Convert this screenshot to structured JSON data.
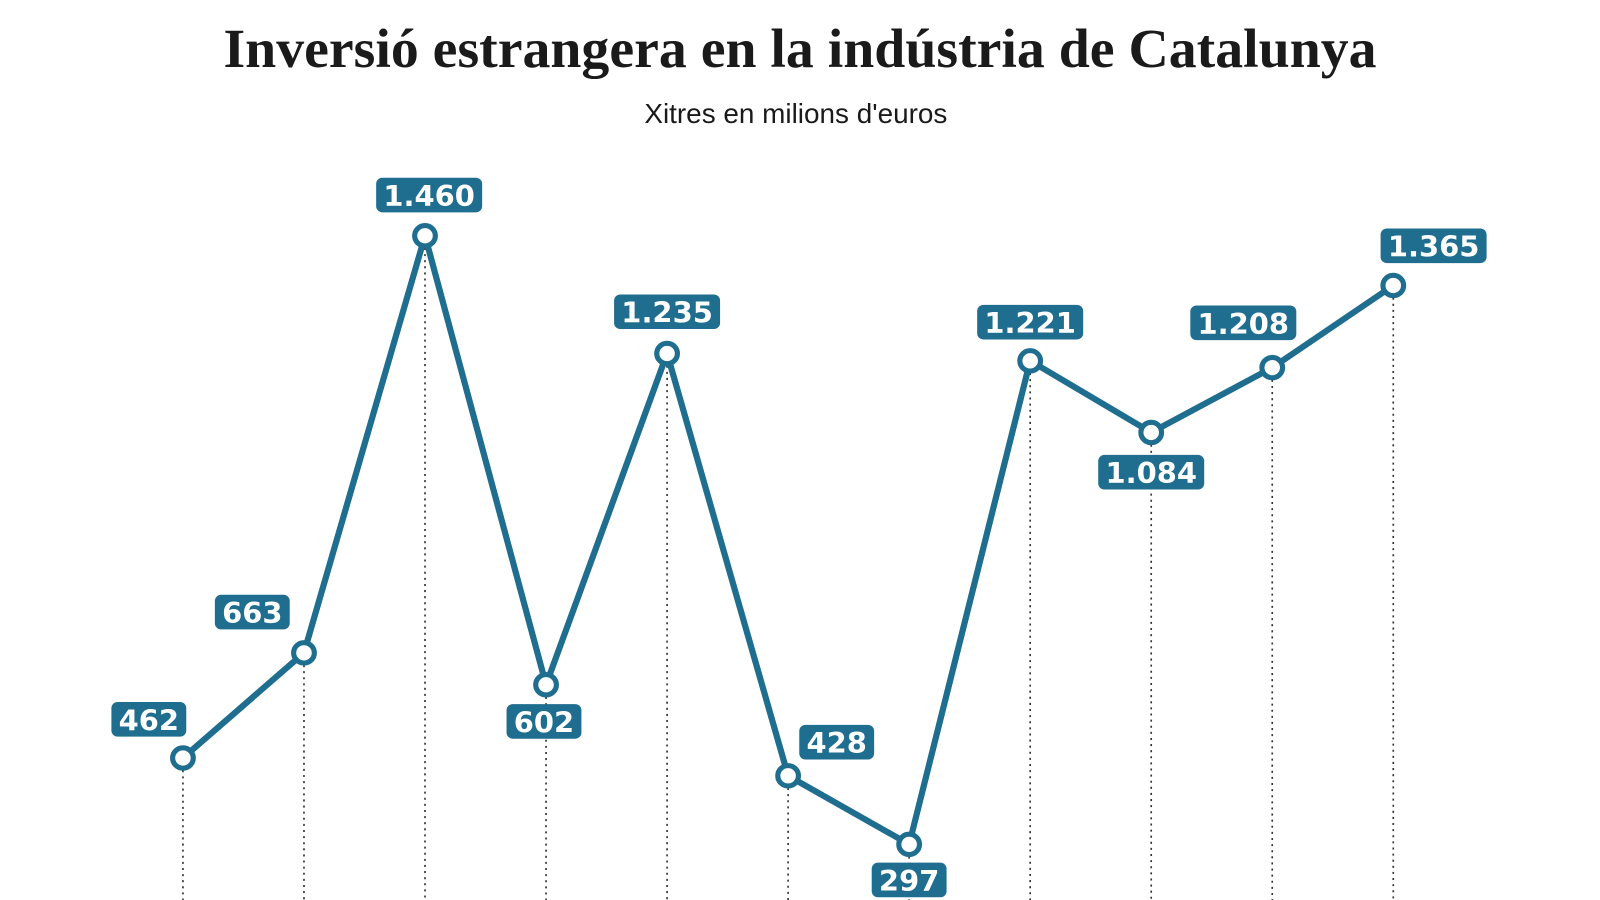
{
  "chart_data": {
    "type": "line",
    "title": "Inversió estrangera en la indústria de Catalunya",
    "subtitle": "Xitres en milions d'euros",
    "color": "#1f6e8f",
    "values": [
      462,
      663,
      1460,
      602,
      1235,
      428,
      297,
      1221,
      1084,
      1208,
      1365
    ],
    "value_labels": [
      "462",
      "663",
      "1.460",
      "602",
      "1.235",
      "428",
      "297",
      "1.221",
      "1.084",
      "1.208",
      "1.365"
    ]
  }
}
